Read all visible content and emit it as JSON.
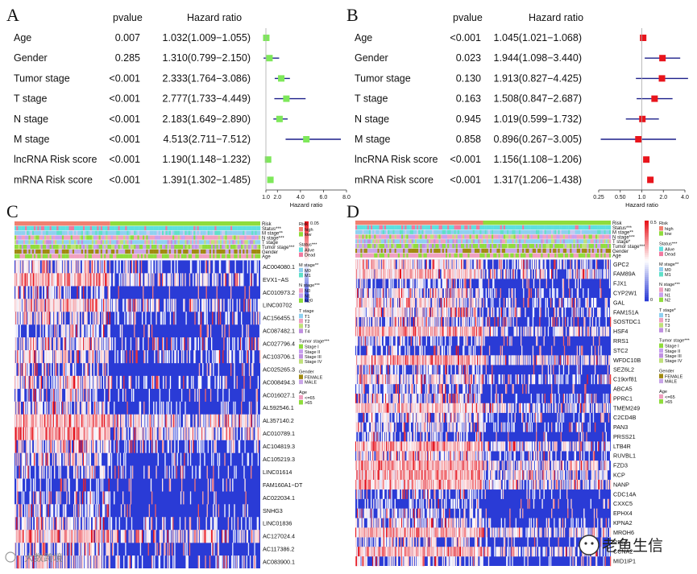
{
  "colors": {
    "forest_a": "#7ee85a",
    "forest_b": "#e8141c",
    "ci": "#1c1f8a",
    "heat_low": "#2a3bd6",
    "heat_mid": "#ffffff",
    "heat_high": "#e8141c",
    "risk_high": "#f08070",
    "risk_low": "#8fdc3c",
    "status_alive": "#5fe0e0",
    "status_dead": "#f07aa0",
    "gender_female": "#a08a10",
    "gender_male": "#c9a5e8",
    "stage_1": "#8fd0f0",
    "stage_2": "#f0a0c0",
    "stage_3": "#bfe07a",
    "stage_4": "#c08fe0"
  },
  "forest_panels": [
    {
      "letter": "A",
      "pvalue_header": "pvalue",
      "hr_header": "Hazard ratio",
      "axis_title": "Hazard ratio",
      "axis_type": "linear",
      "axis_min": 1.0,
      "axis_max": 8.0,
      "ticks": [
        "1.0",
        "2.0",
        "4.0",
        "6.0",
        "8.0"
      ],
      "tick_values": [
        1.0,
        2.0,
        4.0,
        6.0,
        8.0
      ],
      "rows": [
        {
          "label": "Age",
          "pvalue": "0.007",
          "hr_text": "1.032(1.009−1.055)",
          "hr": 1.032,
          "lo": 1.009,
          "hi": 1.055
        },
        {
          "label": "Gender",
          "pvalue": "0.285",
          "hr_text": "1.310(0.799−2.150)",
          "hr": 1.31,
          "lo": 0.799,
          "hi": 2.15
        },
        {
          "label": "Tumor stage",
          "pvalue": "<0.001",
          "hr_text": "2.333(1.764−3.086)",
          "hr": 2.333,
          "lo": 1.764,
          "hi": 3.086
        },
        {
          "label": "T stage",
          "pvalue": "<0.001",
          "hr_text": "2.777(1.733−4.449)",
          "hr": 2.777,
          "lo": 1.733,
          "hi": 4.449
        },
        {
          "label": "N stage",
          "pvalue": "<0.001",
          "hr_text": "2.183(1.649−2.890)",
          "hr": 2.183,
          "lo": 1.649,
          "hi": 2.89
        },
        {
          "label": "M stage",
          "pvalue": "<0.001",
          "hr_text": "4.513(2.711−7.512)",
          "hr": 4.513,
          "lo": 2.711,
          "hi": 7.512
        },
        {
          "label": "lncRNA Risk score",
          "pvalue": "<0.001",
          "hr_text": "1.190(1.148−1.232)",
          "hr": 1.19,
          "lo": 1.148,
          "hi": 1.232
        },
        {
          "label": "mRNA Risk score",
          "pvalue": "<0.001",
          "hr_text": "1.391(1.302−1.485)",
          "hr": 1.391,
          "lo": 1.302,
          "hi": 1.485
        }
      ]
    },
    {
      "letter": "B",
      "pvalue_header": "pvalue",
      "hr_header": "Hazard ratio",
      "axis_title": "Hazard ratio",
      "axis_type": "log2",
      "axis_min": 0.25,
      "axis_max": 4.0,
      "ticks": [
        "0.25",
        "0.50",
        "1.0",
        "2.0",
        "4.0"
      ],
      "tick_values": [
        0.25,
        0.5,
        1.0,
        2.0,
        4.0
      ],
      "rows": [
        {
          "label": "Age",
          "pvalue": "<0.001",
          "hr_text": "1.045(1.021−1.068)",
          "hr": 1.045,
          "lo": 1.021,
          "hi": 1.068
        },
        {
          "label": "Gender",
          "pvalue": "0.023",
          "hr_text": "1.944(1.098−3.440)",
          "hr": 1.944,
          "lo": 1.098,
          "hi": 3.44
        },
        {
          "label": "Tumor stage",
          "pvalue": "0.130",
          "hr_text": "1.913(0.827−4.425)",
          "hr": 1.913,
          "lo": 0.827,
          "hi": 4.425
        },
        {
          "label": "T stage",
          "pvalue": "0.163",
          "hr_text": "1.508(0.847−2.687)",
          "hr": 1.508,
          "lo": 0.847,
          "hi": 2.687
        },
        {
          "label": "N stage",
          "pvalue": "0.945",
          "hr_text": "1.019(0.599−1.732)",
          "hr": 1.019,
          "lo": 0.599,
          "hi": 1.732
        },
        {
          "label": "M stage",
          "pvalue": "0.858",
          "hr_text": "0.896(0.267−3.005)",
          "hr": 0.896,
          "lo": 0.267,
          "hi": 3.005
        },
        {
          "label": "lncRNA Risk score",
          "pvalue": "<0.001",
          "hr_text": "1.156(1.108−1.206)",
          "hr": 1.156,
          "lo": 1.108,
          "hi": 1.206
        },
        {
          "label": "mRNA Risk score",
          "pvalue": "<0.001",
          "hr_text": "1.317(1.206−1.438)",
          "hr": 1.317,
          "lo": 1.206,
          "hi": 1.438
        }
      ]
    }
  ],
  "heat_panels": [
    {
      "letter": "C",
      "annotation_rows": [
        "Risk",
        "Status***",
        "M stage**",
        "N stage***",
        "T stage",
        "Tumor stage***",
        "Gender",
        "Age"
      ],
      "genes": [
        "AC004080.1",
        "EVX1−AS",
        "AC010973.2",
        "LINC00702",
        "AC156455.1",
        "AC087482.1",
        "AC027796.4",
        "AC103706.1",
        "AC025265.3",
        "AC008494.3",
        "AC016027.1",
        "AL592546.1",
        "AL357140.2",
        "AC010789.1",
        "AC104819.3",
        "AC105219.3",
        "LINC01614",
        "FAM160A1−DT",
        "AC022034.1",
        "SNHG3",
        "LINC01836",
        "AC127024.4",
        "AC117386.2",
        "AC083900.1"
      ],
      "high_fraction": 0.39,
      "colorbar_max": "0.05",
      "colorbar_min": "0",
      "legend_groups": [
        {
          "title": "Risk",
          "items": [
            {
              "label": "high",
              "color": "#f08070"
            },
            {
              "label": "low",
              "color": "#8fdc3c"
            }
          ]
        },
        {
          "title": "Status***",
          "items": [
            {
              "label": "Alive",
              "color": "#5fe0e0"
            },
            {
              "label": "Dead",
              "color": "#f07aa0"
            }
          ]
        },
        {
          "title": "M stage**",
          "items": [
            {
              "label": "M0",
              "color": "#8fd0f0"
            },
            {
              "label": "M1",
              "color": "#5fe0c8"
            }
          ]
        },
        {
          "title": "N stage***",
          "items": [
            {
              "label": "N0",
              "color": "#f0a0c0"
            },
            {
              "label": "N1",
              "color": "#c8a0f0"
            },
            {
              "label": "N2",
              "color": "#8fdc3c"
            }
          ]
        },
        {
          "title": "T stage",
          "items": [
            {
              "label": "T1",
              "color": "#8fd0f0"
            },
            {
              "label": "T2",
              "color": "#f0a0c0"
            },
            {
              "label": "T3",
              "color": "#bfe07a"
            },
            {
              "label": "T4",
              "color": "#c08fe0"
            }
          ]
        },
        {
          "title": "Tumor stage***",
          "items": [
            {
              "label": "Stage I",
              "color": "#8fdc3c"
            },
            {
              "label": "Stage II",
              "color": "#c8a0f0"
            },
            {
              "label": "Stage III",
              "color": "#c08fe0"
            },
            {
              "label": "Stage IV",
              "color": "#bfe07a"
            }
          ]
        },
        {
          "title": "Gender",
          "items": [
            {
              "label": "FEMALE",
              "color": "#a08a10"
            },
            {
              "label": "MALE",
              "color": "#c9a5e8"
            }
          ]
        },
        {
          "title": "Age",
          "items": [
            {
              "label": "<=65",
              "color": "#f0a0c0"
            },
            {
              "label": ">65",
              "color": "#8fdc3c"
            }
          ]
        }
      ]
    },
    {
      "letter": "D",
      "annotation_rows": [
        "Risk",
        "Status***",
        "M stage**",
        "N stage***",
        "T stage*",
        "Tumor stage***",
        "Gender",
        "Age"
      ],
      "genes": [
        "GPC2",
        "FAM89A",
        "FJX1",
        "CYP2W1",
        "GAL",
        "FAM151A",
        "SOSTDC1",
        "HSF4",
        "RRS1",
        "STC2",
        "WFDC10B",
        "SEZ6L2",
        "C19orf81",
        "ABCA5",
        "PPRC1",
        "TMEM249",
        "C2CD4B",
        "PAN3",
        "PRSS21",
        "LTB4R",
        "RUVBL1",
        "FZD3",
        "KCP",
        "NANP",
        "CDC14A",
        "CXXC5",
        "EPHX4",
        "KPNA2",
        "MROH6",
        "RBL1",
        "CCNA2",
        "MID1IP1"
      ],
      "high_fraction": 0.5,
      "colorbar_max": "0.5",
      "colorbar_min": "0",
      "legend_groups": [
        {
          "title": "Risk",
          "items": [
            {
              "label": "high",
              "color": "#f08070"
            },
            {
              "label": "low",
              "color": "#8fdc3c"
            }
          ]
        },
        {
          "title": "Status***",
          "items": [
            {
              "label": "Alive",
              "color": "#5fe0e0"
            },
            {
              "label": "Dead",
              "color": "#f07aa0"
            }
          ]
        },
        {
          "title": "M stage**",
          "items": [
            {
              "label": "M0",
              "color": "#8fd0f0"
            },
            {
              "label": "M1",
              "color": "#5fe0c8"
            }
          ]
        },
        {
          "title": "N stage***",
          "items": [
            {
              "label": "N0",
              "color": "#f0a0c0"
            },
            {
              "label": "N1",
              "color": "#c8a0f0"
            },
            {
              "label": "N2",
              "color": "#8fdc3c"
            }
          ]
        },
        {
          "title": "T stage*",
          "items": [
            {
              "label": "T1",
              "color": "#8fd0f0"
            },
            {
              "label": "T2",
              "color": "#f0a0c0"
            },
            {
              "label": "T3",
              "color": "#bfe07a"
            },
            {
              "label": "T4",
              "color": "#c08fe0"
            }
          ]
        },
        {
          "title": "Tumor stage***",
          "items": [
            {
              "label": "Stage I",
              "color": "#8fdc3c"
            },
            {
              "label": "Stage II",
              "color": "#c8a0f0"
            },
            {
              "label": "Stage III",
              "color": "#c08fe0"
            },
            {
              "label": "Stage IV",
              "color": "#bfe07a"
            }
          ]
        },
        {
          "title": "Gender",
          "items": [
            {
              "label": "FEMALE",
              "color": "#a08a10"
            },
            {
              "label": "MALE",
              "color": "#c9a5e8"
            }
          ]
        },
        {
          "title": "Age",
          "items": [
            {
              "label": "<=65",
              "color": "#f0a0c0"
            },
            {
              "label": ">65",
              "color": "#8fdc3c"
            }
          ]
        }
      ]
    }
  ],
  "watermarks": {
    "left": "大数跨境",
    "right": "老鱼生信"
  },
  "chart_data": [
    {
      "type": "scatter",
      "title": "A",
      "xlabel": "Hazard ratio",
      "categories": [
        "Age",
        "Gender",
        "Tumor stage",
        "T stage",
        "N stage",
        "M stage",
        "lncRNA Risk score",
        "mRNA Risk score"
      ],
      "series": [
        {
          "name": "Hazard ratio",
          "values": [
            1.032,
            1.31,
            2.333,
            2.777,
            2.183,
            4.513,
            1.19,
            1.391
          ]
        },
        {
          "name": "CI lower",
          "values": [
            1.009,
            0.799,
            1.764,
            1.733,
            1.649,
            2.711,
            1.148,
            1.302
          ]
        },
        {
          "name": "CI upper",
          "values": [
            1.055,
            2.15,
            3.086,
            4.449,
            2.89,
            7.512,
            1.232,
            1.485
          ]
        }
      ],
      "xlim": [
        1.0,
        8.0
      ]
    },
    {
      "type": "scatter",
      "title": "B",
      "xlabel": "Hazard ratio",
      "categories": [
        "Age",
        "Gender",
        "Tumor stage",
        "T stage",
        "N stage",
        "M stage",
        "lncRNA Risk score",
        "mRNA Risk score"
      ],
      "series": [
        {
          "name": "Hazard ratio",
          "values": [
            1.045,
            1.944,
            1.913,
            1.508,
            1.019,
            0.896,
            1.156,
            1.317
          ]
        },
        {
          "name": "CI lower",
          "values": [
            1.021,
            1.098,
            0.827,
            0.847,
            0.599,
            0.267,
            1.108,
            1.206
          ]
        },
        {
          "name": "CI upper",
          "values": [
            1.068,
            3.44,
            4.425,
            2.687,
            1.732,
            3.005,
            1.206,
            1.438
          ]
        }
      ],
      "xlim": [
        0.25,
        4.0
      ]
    },
    {
      "type": "heatmap",
      "title": "C",
      "categories": [
        "AC004080.1",
        "EVX1−AS",
        "AC010973.2",
        "LINC00702",
        "AC156455.1",
        "AC087482.1",
        "AC027796.4",
        "AC103706.1",
        "AC025265.3",
        "AC008494.3",
        "AC016027.1",
        "AL592546.1",
        "AL357140.2",
        "AC010789.1",
        "AC104819.3",
        "AC105219.3",
        "LINC01614",
        "FAM160A1−DT",
        "AC022034.1",
        "SNHG3",
        "LINC01836",
        "AC127024.4",
        "AC117386.2",
        "AC083900.1"
      ],
      "ylim": [
        0,
        0.05
      ]
    },
    {
      "type": "heatmap",
      "title": "D",
      "categories": [
        "GPC2",
        "FAM89A",
        "FJX1",
        "CYP2W1",
        "GAL",
        "FAM151A",
        "SOSTDC1",
        "HSF4",
        "RRS1",
        "STC2",
        "WFDC10B",
        "SEZ6L2",
        "C19orf81",
        "ABCA5",
        "PPRC1",
        "TMEM249",
        "C2CD4B",
        "PAN3",
        "PRSS21",
        "LTB4R",
        "RUVBL1",
        "FZD3",
        "KCP",
        "NANP",
        "CDC14A",
        "CXXC5",
        "EPHX4",
        "KPNA2",
        "MROH6",
        "RBL1",
        "CCNA2",
        "MID1IP1"
      ],
      "ylim": [
        0,
        0.5
      ]
    }
  ]
}
